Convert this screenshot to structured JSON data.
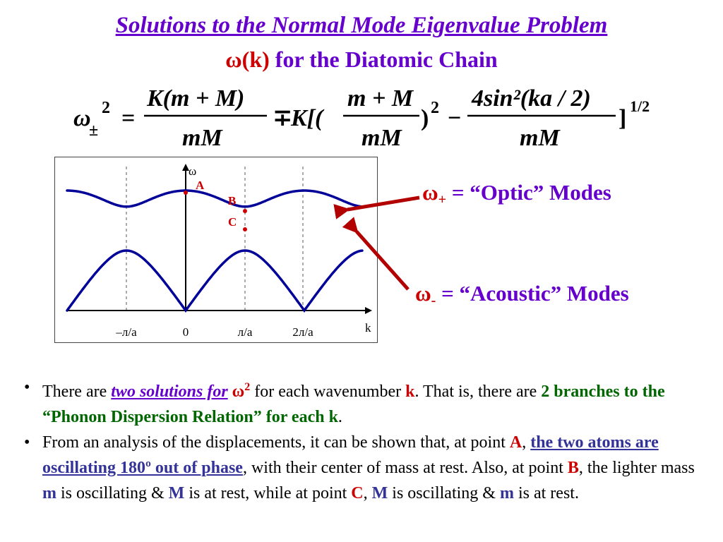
{
  "title": {
    "line1": "Solutions to the Normal Mode Eigenvalue Problem",
    "line2_red": "ω(k)",
    "line2_rest": " for the Diatomic Chain"
  },
  "equation": {
    "lhs": "ω",
    "lhs_sub": "±",
    "lhs_sup": "2",
    "eq": "=",
    "num1": "K(m + M)",
    "den1": "mM",
    "pm": "∓",
    "k_bracket": "K[(",
    "num2": "m + M",
    "den2": "mM",
    "close_sq": ")",
    "sq": "2",
    "minus": "−",
    "num3": "4sin²(ka / 2)",
    "den3": "mM",
    "close_bracket": "]",
    "exp": "1/2"
  },
  "plot": {
    "axis_y": "ω",
    "axis_x": "k",
    "ticks": [
      "–л/a",
      "0",
      "л/a",
      "2л/a"
    ],
    "points": {
      "A": "A",
      "B": "B",
      "C": "C"
    },
    "colors": {
      "curve": "#000099",
      "point": "#CC0000",
      "axis": "#000000"
    }
  },
  "labels": {
    "optic_omega": "ω",
    "optic_sub": "+",
    "optic_text": " =  “Optic” Modes",
    "acoustic_omega": "ω",
    "acoustic_sub": "-",
    "acoustic_text": " = “Acoustic” Modes"
  },
  "bullets": {
    "dot": "•",
    "b1": {
      "t1": "There are ",
      "link": "two solutions for",
      "omega": " ω",
      "sup": "2",
      "t2": " for each wavenumber ",
      "k": "k",
      "t3": ". That is, there are ",
      "green": "2 branches to the “Phonon Dispersion Relation” for each k",
      "t4": "."
    },
    "b2": {
      "t1": "From an analysis of the displacements, it can be shown that, at point ",
      "A": "A",
      "t2": ", ",
      "link": "the two atoms are oscillating 180º out of phase",
      "t3": ", with their center of mass at rest.  Also, at point ",
      "B": "B",
      "t4": ", the lighter mass ",
      "m1": "m",
      "t5": " is oscillating & ",
      "M1": "M",
      "t6": " is at rest, while at point ",
      "C": "C",
      "t7": ", ",
      "M2": "M",
      "t8": " is oscillating & ",
      "m2": "m",
      "t9": " is at rest."
    }
  }
}
